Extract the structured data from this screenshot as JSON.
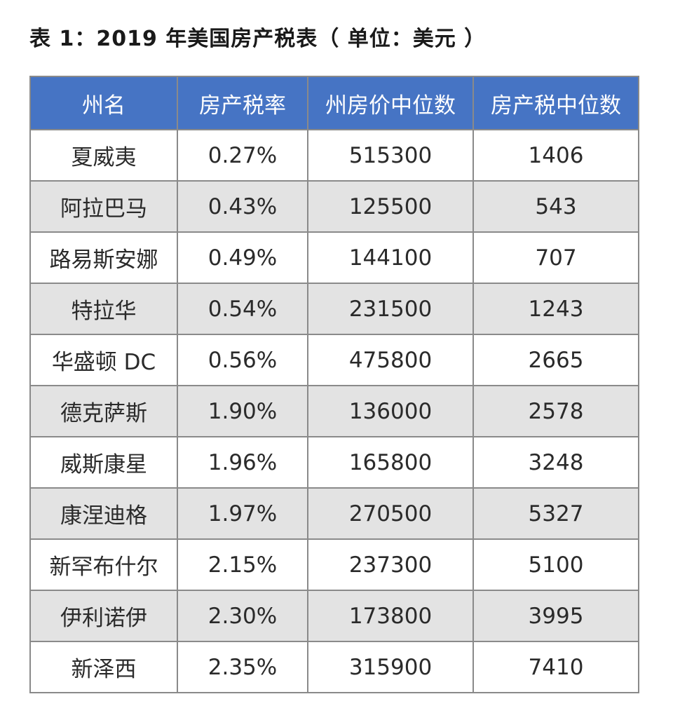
{
  "title": "表 1：2019 年美国房产税表（ 单位：美元 ）",
  "chart_data": {
    "type": "table",
    "title": "表 1：2019 年美国房产税表（ 单位：美元 ）",
    "columns": [
      "州名",
      "房产税率",
      "州房价中位数",
      "房产税中位数"
    ],
    "rows": [
      [
        "夏威夷",
        "0.27%",
        "515300",
        "1406"
      ],
      [
        "阿拉巴马",
        "0.43%",
        "125500",
        "543"
      ],
      [
        "路易斯安娜",
        "0.49%",
        "144100",
        "707"
      ],
      [
        "特拉华",
        "0.54%",
        "231500",
        "1243"
      ],
      [
        "华盛顿 DC",
        "0.56%",
        "475800",
        "2665"
      ],
      [
        "德克萨斯",
        "1.90%",
        "136000",
        "2578"
      ],
      [
        "威斯康星",
        "1.96%",
        "165800",
        "3248"
      ],
      [
        "康涅迪格",
        "1.97%",
        "270500",
        "5327"
      ],
      [
        "新罕布什尔",
        "2.15%",
        "237300",
        "5100"
      ],
      [
        "伊利诺伊",
        "2.30%",
        "173800",
        "3995"
      ],
      [
        "新泽西",
        "2.35%",
        "315900",
        "7410"
      ]
    ],
    "colors": {
      "header_bg": "#4674c4",
      "header_text": "#ffffff",
      "stripe_bg": "#e3e3e3",
      "border": "#8a8a8a"
    }
  }
}
